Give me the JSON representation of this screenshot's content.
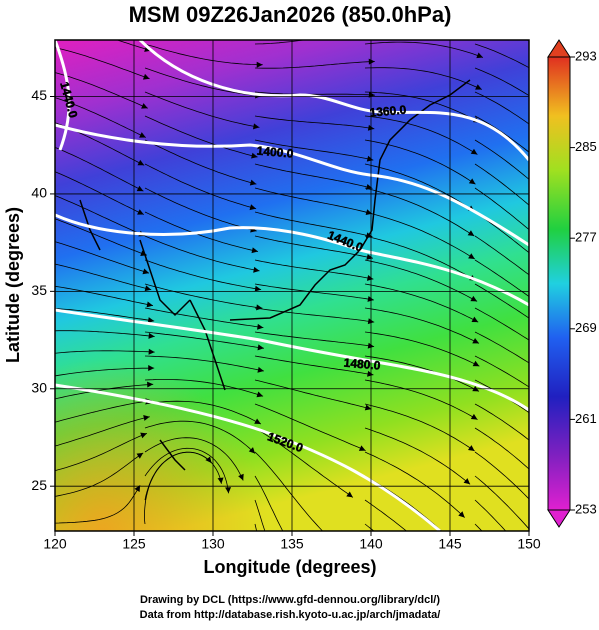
{
  "chart_data": {
    "type": "map",
    "title": "MSM 09Z26Jan2026 (850.0hPa)",
    "x_label": "Longitude (degrees)",
    "y_label": "Latitude  (degrees)",
    "xlim": [
      120,
      150
    ],
    "ylim": [
      22.7,
      47.9
    ],
    "xticks": [
      120,
      125,
      130,
      135,
      140,
      145,
      150
    ],
    "yticks": [
      25,
      30,
      35,
      40,
      45
    ],
    "grid": true,
    "colorbar": {
      "lim": [
        253,
        293
      ],
      "ticks": [
        253,
        261,
        269,
        277,
        285,
        293
      ]
    },
    "contour_labels": [
      "1440.0",
      "1360.0",
      "1400.0",
      "1440.0",
      "1480.0",
      "1520.0"
    ]
  },
  "credits": [
    "Drawing by DCL (https://www.gfd-dennou.org/library/dcl/)",
    "Data from http://database.rish.kyoto-u.ac.jp/arch/jmadata/"
  ]
}
